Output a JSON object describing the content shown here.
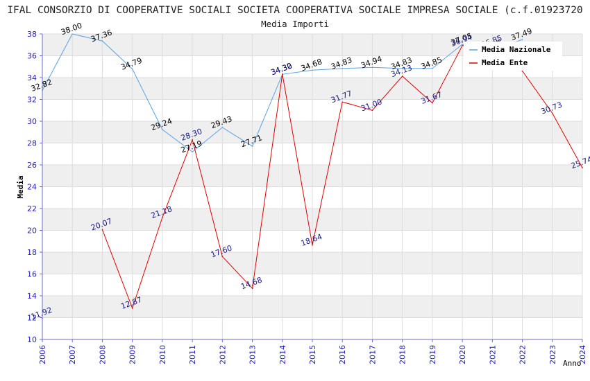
{
  "colors": {
    "background": "#ffffff",
    "band": "#efefef",
    "grid": "#dddddd",
    "axis": "#6b6bd6",
    "tick_label": "#1f1fbf",
    "title": "#222222",
    "series_nazionale": "#5aa2e6",
    "series_ente": "#e00000",
    "label_nazionale": "#000000",
    "label_ente": "#1a1a8c"
  },
  "chart_data": {
    "type": "line",
    "title": "IFAL CONSORZIO DI COOPERATIVE SOCIALI SOCIETA COOPERATIVA SOCIALE IMPRESA SOCIALE (c.f.01923720",
    "subtitle": "Media Importi",
    "xlabel": "Anno",
    "ylabel": "Media",
    "ylim": [
      10,
      38
    ],
    "yticks": [
      10,
      12,
      14,
      16,
      18,
      20,
      22,
      24,
      26,
      28,
      30,
      32,
      34,
      36,
      38
    ],
    "grid": true,
    "legend_position": "top-right",
    "categories": [
      "2006",
      "2007",
      "2008",
      "2009",
      "2010",
      "2011",
      "2012",
      "2013",
      "2014",
      "2015",
      "2016",
      "2017",
      "2018",
      "2019",
      "2020",
      "2021",
      "2022",
      "2023",
      "2024"
    ],
    "series": [
      {
        "name": "Media Nazionale",
        "values": [
          32.82,
          38.0,
          37.36,
          34.79,
          29.24,
          27.19,
          29.43,
          27.71,
          34.3,
          34.68,
          34.83,
          34.94,
          34.83,
          34.85,
          37.05,
          36.46,
          37.49,
          null,
          null
        ],
        "labels": [
          "32.82",
          "38.00",
          "37.36",
          "34.79",
          "29.24",
          "27.19",
          "29.43",
          "27.71",
          "34.30",
          "34.68",
          "34.83",
          "34.94",
          "34.83",
          "34.85",
          "37.05",
          "36.46",
          "37.49",
          "",
          ""
        ]
      },
      {
        "name": "Media Ente",
        "values": [
          11.92,
          null,
          20.07,
          12.87,
          21.18,
          28.3,
          17.6,
          14.68,
          34.32,
          18.64,
          31.77,
          31.0,
          34.13,
          31.67,
          36.94,
          36.85,
          34.6,
          30.73,
          25.74
        ],
        "labels": [
          "11.92",
          "",
          "20.07",
          "12.87",
          "21.18",
          "28.30",
          "17.60",
          "14.68",
          "34.32",
          "18.64",
          "31.77",
          "31.00",
          "34.13",
          "31.67",
          "36.94",
          "36.85",
          "",
          "30.73",
          "25.74"
        ]
      }
    ]
  }
}
